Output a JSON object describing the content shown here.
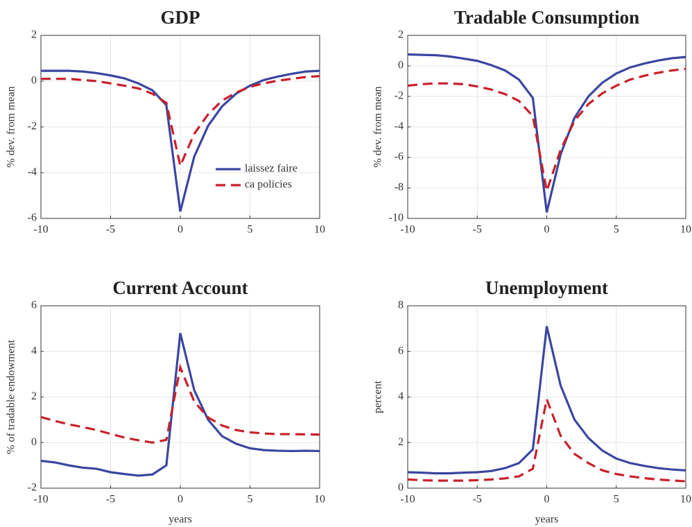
{
  "chart_data": [
    {
      "type": "line",
      "title": "GDP",
      "ylabel": "% dev. from mean",
      "x": [
        -10,
        -9,
        -8,
        -7,
        -6,
        -5,
        -4,
        -3,
        -2,
        -1,
        0,
        1,
        2,
        3,
        4,
        5,
        6,
        7,
        8,
        9,
        10
      ],
      "xlim": [
        -10,
        10
      ],
      "xticks": [
        -10,
        -5,
        0,
        5,
        10
      ],
      "ylim": [
        -6,
        2
      ],
      "yticks": [
        -6,
        -4,
        -2,
        0,
        2
      ],
      "grid": true,
      "legend": "lower right",
      "series": [
        {
          "name": "laissez faire",
          "color": "#3a46a0",
          "style": "solid",
          "values": [
            0.45,
            0.45,
            0.45,
            0.42,
            0.35,
            0.25,
            0.12,
            -0.1,
            -0.4,
            -1.05,
            -5.7,
            -3.3,
            -1.95,
            -1.1,
            -0.55,
            -0.2,
            0.05,
            0.2,
            0.32,
            0.42,
            0.45
          ]
        },
        {
          "name": "ca policies",
          "color": "#c8202a",
          "style": "dashed",
          "values": [
            0.1,
            0.1,
            0.1,
            0.05,
            0.0,
            -0.1,
            -0.2,
            -0.32,
            -0.55,
            -0.95,
            -3.7,
            -2.3,
            -1.45,
            -0.85,
            -0.5,
            -0.25,
            -0.1,
            0.02,
            0.1,
            0.18,
            0.22
          ]
        }
      ]
    },
    {
      "type": "line",
      "title": "Tradable Consumption",
      "ylabel": "% dev. from mean",
      "x": [
        -10,
        -9,
        -8,
        -7,
        -6,
        -5,
        -4,
        -3,
        -2,
        -1,
        0,
        1,
        2,
        3,
        4,
        5,
        6,
        7,
        8,
        9,
        10
      ],
      "xlim": [
        -10,
        10
      ],
      "xticks": [
        -10,
        -5,
        0,
        5,
        10
      ],
      "ylim": [
        -10,
        2
      ],
      "yticks": [
        -10,
        -8,
        -6,
        -4,
        -2,
        0,
        2
      ],
      "grid": true,
      "series": [
        {
          "color": "#3a46a0",
          "style": "solid",
          "values": [
            0.75,
            0.72,
            0.7,
            0.62,
            0.48,
            0.33,
            0.05,
            -0.3,
            -0.9,
            -2.1,
            -9.6,
            -5.8,
            -3.4,
            -2.0,
            -1.1,
            -0.5,
            -0.1,
            0.15,
            0.35,
            0.5,
            0.58
          ]
        },
        {
          "color": "#c8202a",
          "style": "dashed",
          "values": [
            -1.3,
            -1.2,
            -1.15,
            -1.15,
            -1.2,
            -1.35,
            -1.55,
            -1.85,
            -2.3,
            -3.3,
            -8.2,
            -5.5,
            -3.6,
            -2.5,
            -1.8,
            -1.3,
            -0.9,
            -0.65,
            -0.45,
            -0.3,
            -0.2
          ]
        }
      ]
    },
    {
      "type": "line",
      "title": "Current Account",
      "ylabel": "% of tradable endowment",
      "xlabel": "years",
      "x": [
        -10,
        -9,
        -8,
        -7,
        -6,
        -5,
        -4,
        -3,
        -2,
        -1,
        0,
        1,
        2,
        3,
        4,
        5,
        6,
        7,
        8,
        9,
        10
      ],
      "xlim": [
        -10,
        10
      ],
      "xticks": [
        -10,
        -5,
        0,
        5,
        10
      ],
      "ylim": [
        -2,
        6
      ],
      "yticks": [
        -2,
        0,
        2,
        4,
        6
      ],
      "grid": true,
      "series": [
        {
          "color": "#3a46a0",
          "style": "solid",
          "values": [
            -0.8,
            -0.87,
            -1.0,
            -1.1,
            -1.15,
            -1.3,
            -1.38,
            -1.45,
            -1.4,
            -1.0,
            4.8,
            2.3,
            1.0,
            0.28,
            -0.05,
            -0.25,
            -0.33,
            -0.36,
            -0.37,
            -0.36,
            -0.37
          ]
        },
        {
          "color": "#c8202a",
          "style": "dashed",
          "values": [
            1.12,
            0.95,
            0.8,
            0.68,
            0.55,
            0.38,
            0.22,
            0.1,
            0.0,
            0.12,
            3.3,
            1.8,
            1.1,
            0.75,
            0.55,
            0.45,
            0.4,
            0.37,
            0.37,
            0.36,
            0.35
          ]
        }
      ]
    },
    {
      "type": "line",
      "title": "Unemployment",
      "ylabel": "percent",
      "xlabel": "years",
      "x": [
        -10,
        -9,
        -8,
        -7,
        -6,
        -5,
        -4,
        -3,
        -2,
        -1,
        0,
        1,
        2,
        3,
        4,
        5,
        6,
        7,
        8,
        9,
        10
      ],
      "xlim": [
        -10,
        10
      ],
      "xticks": [
        -10,
        -5,
        0,
        5,
        10
      ],
      "ylim": [
        0,
        8
      ],
      "yticks": [
        0,
        2,
        4,
        6,
        8
      ],
      "grid": true,
      "series": [
        {
          "color": "#3a46a0",
          "style": "solid",
          "values": [
            0.7,
            0.68,
            0.65,
            0.65,
            0.68,
            0.7,
            0.75,
            0.88,
            1.1,
            1.7,
            7.1,
            4.5,
            3.0,
            2.2,
            1.65,
            1.3,
            1.1,
            0.98,
            0.88,
            0.82,
            0.78
          ]
        },
        {
          "color": "#c8202a",
          "style": "dashed",
          "values": [
            0.38,
            0.35,
            0.33,
            0.33,
            0.33,
            0.35,
            0.38,
            0.43,
            0.52,
            0.85,
            3.9,
            2.3,
            1.5,
            1.1,
            0.78,
            0.62,
            0.52,
            0.44,
            0.38,
            0.34,
            0.3
          ]
        }
      ]
    }
  ]
}
